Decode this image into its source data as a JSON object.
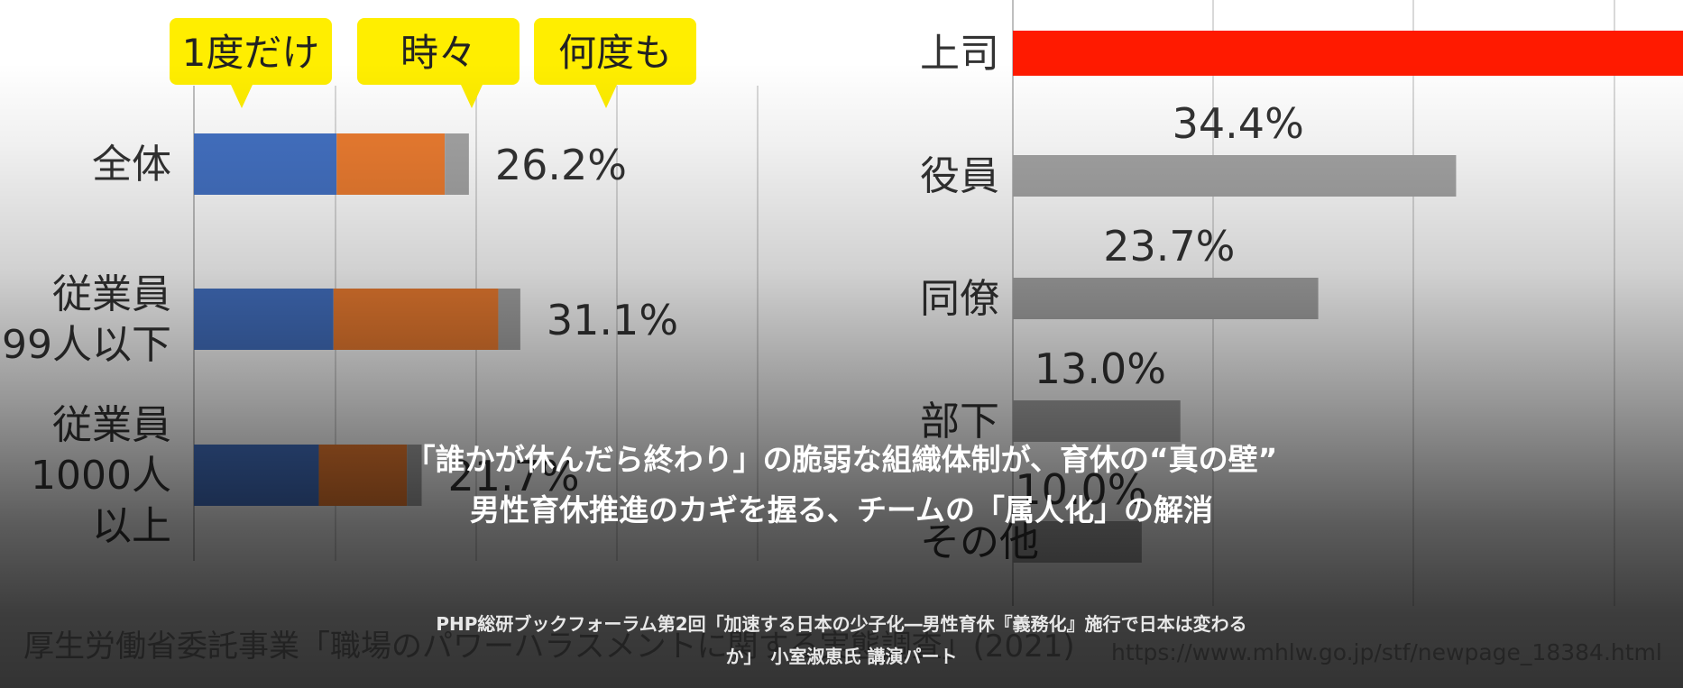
{
  "chart_data": [
    {
      "type": "bar",
      "orientation": "horizontal",
      "stacked": true,
      "categories": [
        "全体",
        "従業員\n99人以下",
        "従業員\n1000人\n以上"
      ],
      "series": [
        {
          "name": "1度だけ",
          "color": "#4472c4",
          "values": [
            13.6,
            13.3,
            11.9
          ]
        },
        {
          "name": "時々",
          "color": "#ed7d31",
          "values": [
            10.3,
            15.7,
            8.4
          ]
        },
        {
          "name": "何度も",
          "color": "#a5a5a5",
          "values": [
            2.3,
            2.1,
            1.4
          ]
        }
      ],
      "data_labels": [
        "26.2%",
        "31.1%",
        "21.7%"
      ],
      "legend_placement": "top",
      "grid": true,
      "xlim": [
        0,
        55
      ],
      "source": "厚生労働省委託事業「職場のパワーハラスメントに関する実態調査」(2021)"
    },
    {
      "type": "bar",
      "orientation": "horizontal",
      "categories": [
        "上司",
        "役員",
        "同僚",
        "部下",
        "その他"
      ],
      "values": [
        66.0,
        34.4,
        23.7,
        13.0,
        10.0
      ],
      "data_labels": [
        "",
        "34.4%",
        "23.7%",
        "13.0%",
        "10.0%"
      ],
      "colors": [
        "#ff1a00",
        "#a6a6a6",
        "#a6a6a6",
        "#a6a6a6",
        "#a6a6a6"
      ],
      "grid": true,
      "xlim": [
        0,
        70
      ],
      "source": "https://www.mhlw.go.jp/stf/newpage_18384.html"
    }
  ],
  "headline": {
    "line1": "「誰かが休んだら終わり」の脆弱な組織体制が、育休の“真の壁”",
    "line2": "男性育休推進のカギを握る、チームの「属人化」の解消"
  },
  "subcaption": {
    "line1": "PHP総研ブックフォーラム第2回「加速する日本の少子化―男性育休『義務化』施行で日本は変わるか」　小室淑恵氏 講演パート"
  }
}
